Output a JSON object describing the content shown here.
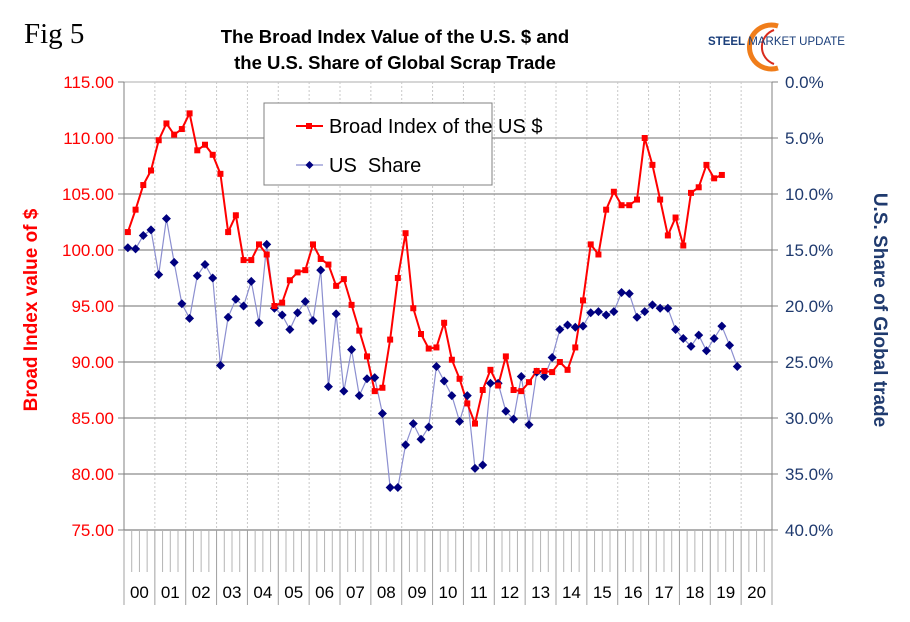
{
  "figure_label": "Fig 5",
  "title_line1": "The Broad Index Value of the U.S. $ and",
  "title_line2": "the U.S. Share of Global Scrap Trade",
  "logo": {
    "part1": "STEEL",
    "part2": " MARKET UPDATE"
  },
  "chart_data": {
    "type": "line",
    "title": "The Broad Index Value of the U.S. $ and the U.S. Share of Global Scrap Trade",
    "xlabel": "",
    "ylabel_left": "Broad Index value of $",
    "ylabel_right": "U.S. Share of Global trade",
    "ylim_left": [
      75,
      115
    ],
    "ylim_right": [
      0,
      40
    ],
    "right_axis_inverted": true,
    "yticks_left": [
      "115.00",
      "110.00",
      "105.00",
      "100.00",
      "95.00",
      "90.00",
      "85.00",
      "80.00",
      "75.00"
    ],
    "yticks_right": [
      "0.0%",
      "5.0%",
      "10.0%",
      "15.0%",
      "20.0%",
      "25.0%",
      "30.0%",
      "35.0%",
      "40.0%"
    ],
    "categories": [
      "00",
      "01",
      "02",
      "03",
      "04",
      "05",
      "06",
      "07",
      "08",
      "09",
      "10",
      "11",
      "12",
      "13",
      "14",
      "15",
      "16",
      "17",
      "18",
      "19",
      "20"
    ],
    "points_per_year": 4,
    "grid": true,
    "legend_placement": "top-center",
    "series": [
      {
        "name": "Broad Index of the US $",
        "axis": "left",
        "color": "#ff0000",
        "marker": "square",
        "values": [
          101.6,
          103.6,
          105.8,
          107.1,
          109.8,
          111.3,
          110.3,
          110.8,
          112.2,
          108.9,
          109.4,
          108.5,
          106.8,
          101.6,
          103.1,
          99.1,
          99.1,
          100.5,
          99.6,
          95.0,
          95.3,
          97.3,
          98.0,
          98.2,
          100.5,
          99.2,
          98.7,
          96.8,
          97.4,
          95.1,
          92.8,
          90.5,
          87.4,
          87.7,
          92.0,
          97.5,
          101.5,
          94.8,
          92.5,
          91.2,
          91.3,
          93.5,
          90.2,
          88.5,
          86.3,
          84.5,
          87.5,
          89.3,
          87.9,
          90.5,
          87.5,
          87.4,
          88.2,
          89.2,
          89.2,
          89.1,
          90.0,
          89.3,
          91.3,
          95.5,
          100.5,
          99.6,
          103.6,
          105.2,
          104.0,
          104.0,
          104.5,
          110.0,
          107.6,
          104.5,
          101.3,
          102.9,
          100.4,
          105.1,
          105.6,
          107.6,
          106.4,
          106.7
        ]
      },
      {
        "name": "US  Share",
        "axis": "right",
        "color": "#00007f",
        "line_color": "#8c8fd0",
        "marker": "diamond",
        "values": [
          14.8,
          14.9,
          13.7,
          13.2,
          17.2,
          12.2,
          16.1,
          19.8,
          21.1,
          17.3,
          16.3,
          17.5,
          25.3,
          21.0,
          19.4,
          20.0,
          17.8,
          21.5,
          14.5,
          20.2,
          20.8,
          22.1,
          20.6,
          19.6,
          21.3,
          16.8,
          27.2,
          20.7,
          27.6,
          23.9,
          28.0,
          26.5,
          26.4,
          29.6,
          36.2,
          36.2,
          32.4,
          30.5,
          31.9,
          30.8,
          25.4,
          26.7,
          28.0,
          30.3,
          28.0,
          34.5,
          34.2,
          26.9,
          26.9,
          29.4,
          30.1,
          26.3,
          30.6,
          25.9,
          26.3,
          24.6,
          22.1,
          21.7,
          21.9,
          21.8,
          20.6,
          20.5,
          20.8,
          20.5,
          18.8,
          18.9,
          21.0,
          20.5,
          19.9,
          20.2,
          20.2,
          22.1,
          22.9,
          23.6,
          22.6,
          24.0,
          22.9,
          21.8,
          23.5,
          25.4
        ]
      }
    ]
  }
}
